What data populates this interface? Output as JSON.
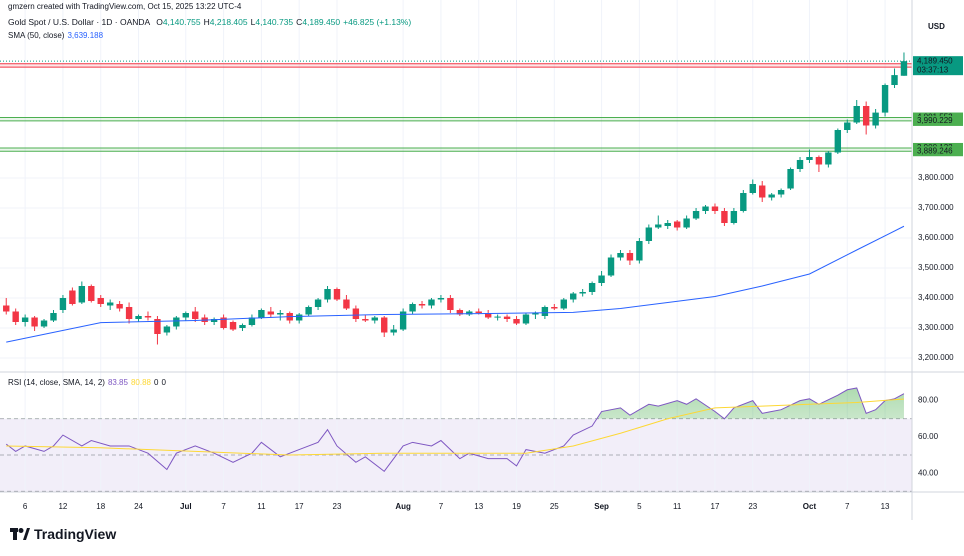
{
  "header": {
    "credit": "gmzern created with TradingView.com, Oct 15, 2025 13:22 UTC-4"
  },
  "footer": {
    "logo": "TradingView"
  },
  "chart_data": [
    {
      "type": "candlestick",
      "title": "Gold Spot / U.S. Dollar · 1D · OANDA",
      "ohlc_legend": [
        {
          "label": "O",
          "value": "4,140.755"
        },
        {
          "label": "H",
          "value": "4,218.405"
        },
        {
          "label": "L",
          "value": "4,140.735"
        },
        {
          "label": "C",
          "value": "4,189.450"
        }
      ],
      "change": "+46.825 (+1.13%)",
      "currency": "USD",
      "up_color": "#089981",
      "down_color": "#f23645",
      "open": [
        3375,
        3355,
        3320,
        3335,
        3305,
        3325,
        3360,
        3425,
        3385,
        3440,
        3400,
        3375,
        3380,
        3370,
        3330,
        3340,
        3330,
        3285,
        3305,
        3335,
        3355,
        3335,
        3320,
        3335,
        3320,
        3300,
        3310,
        3335,
        3355,
        3345,
        3350,
        3325,
        3345,
        3370,
        3395,
        3430,
        3395,
        3365,
        3330,
        3325,
        3335,
        3285,
        3295,
        3355,
        3380,
        3375,
        3395,
        3400,
        3360,
        3345,
        3355,
        3350,
        3335,
        3338,
        3330,
        3315,
        3345,
        3340,
        3370,
        3365,
        3395,
        3415,
        3420,
        3450,
        3475,
        3535,
        3550,
        3525,
        3590,
        3635,
        3640,
        3655,
        3635,
        3665,
        3690,
        3705,
        3690,
        3650,
        3690,
        3750,
        3775,
        3735,
        3745,
        3765,
        3830,
        3860,
        3870,
        3845,
        3885,
        3960,
        3985,
        4040,
        3975,
        4018,
        4110,
        4140.755
      ],
      "high": [
        3400,
        3365,
        3345,
        3340,
        3330,
        3360,
        3410,
        3435,
        3455,
        3445,
        3410,
        3395,
        3390,
        3385,
        3345,
        3355,
        3340,
        3310,
        3340,
        3355,
        3370,
        3345,
        3335,
        3345,
        3325,
        3315,
        3345,
        3365,
        3370,
        3360,
        3355,
        3350,
        3375,
        3400,
        3440,
        3435,
        3410,
        3375,
        3345,
        3340,
        3340,
        3310,
        3365,
        3385,
        3390,
        3400,
        3410,
        3410,
        3365,
        3360,
        3365,
        3360,
        3345,
        3345,
        3340,
        3350,
        3355,
        3375,
        3380,
        3400,
        3420,
        3430,
        3455,
        3490,
        3545,
        3560,
        3560,
        3600,
        3645,
        3675,
        3660,
        3660,
        3675,
        3700,
        3710,
        3715,
        3700,
        3700,
        3760,
        3795,
        3790,
        3750,
        3765,
        3835,
        3870,
        3895,
        3875,
        3890,
        3965,
        3995,
        4060,
        4055,
        4030,
        4115,
        4165,
        4218.405
      ],
      "low": [
        3345,
        3310,
        3305,
        3290,
        3300,
        3320,
        3350,
        3375,
        3380,
        3385,
        3370,
        3360,
        3355,
        3315,
        3320,
        3325,
        3245,
        3275,
        3295,
        3325,
        3320,
        3310,
        3310,
        3295,
        3290,
        3290,
        3305,
        3330,
        3335,
        3325,
        3315,
        3315,
        3340,
        3360,
        3385,
        3390,
        3360,
        3320,
        3320,
        3315,
        3270,
        3275,
        3290,
        3345,
        3365,
        3365,
        3385,
        3350,
        3340,
        3340,
        3345,
        3330,
        3325,
        3320,
        3310,
        3310,
        3330,
        3330,
        3360,
        3360,
        3385,
        3405,
        3410,
        3440,
        3470,
        3525,
        3510,
        3515,
        3580,
        3630,
        3630,
        3625,
        3630,
        3660,
        3680,
        3680,
        3640,
        3645,
        3685,
        3745,
        3720,
        3725,
        3735,
        3760,
        3820,
        3850,
        3820,
        3835,
        3880,
        3950,
        3980,
        3945,
        3965,
        4005,
        4100,
        4140.735
      ],
      "close": [
        3355,
        3320,
        3335,
        3305,
        3325,
        3350,
        3400,
        3380,
        3440,
        3390,
        3380,
        3385,
        3365,
        3330,
        3340,
        3335,
        3280,
        3305,
        3335,
        3350,
        3330,
        3320,
        3330,
        3300,
        3295,
        3310,
        3335,
        3360,
        3345,
        3350,
        3325,
        3345,
        3370,
        3395,
        3430,
        3395,
        3365,
        3330,
        3325,
        3335,
        3285,
        3295,
        3355,
        3380,
        3375,
        3395,
        3400,
        3360,
        3345,
        3355,
        3350,
        3335,
        3338,
        3330,
        3315,
        3345,
        3350,
        3370,
        3365,
        3395,
        3415,
        3420,
        3450,
        3475,
        3535,
        3550,
        3525,
        3590,
        3635,
        3645,
        3650,
        3635,
        3665,
        3690,
        3705,
        3690,
        3650,
        3690,
        3750,
        3780,
        3735,
        3745,
        3760,
        3830,
        3860,
        3870,
        3845,
        3885,
        3960,
        3985,
        4040,
        3975,
        4018,
        4110,
        4143,
        4189.45
      ],
      "xlim": [
        -0.66,
        95.85
      ],
      "xticks": [
        {
          "value": 2,
          "label": "6"
        },
        {
          "value": 6,
          "label": "12"
        },
        {
          "value": 10,
          "label": "18"
        },
        {
          "value": 14,
          "label": "24"
        },
        {
          "value": 19,
          "label": "Jul"
        },
        {
          "value": 23,
          "label": "7"
        },
        {
          "value": 27,
          "label": "11"
        },
        {
          "value": 31,
          "label": "17"
        },
        {
          "value": 35,
          "label": "23"
        },
        {
          "value": 42,
          "label": "Aug"
        },
        {
          "value": 46,
          "label": "7"
        },
        {
          "value": 50,
          "label": "13"
        },
        {
          "value": 54,
          "label": "19"
        },
        {
          "value": 58,
          "label": "25"
        },
        {
          "value": 63,
          "label": "Sep"
        },
        {
          "value": 67,
          "label": "5"
        },
        {
          "value": 71,
          "label": "11"
        },
        {
          "value": 75,
          "label": "17"
        },
        {
          "value": 79,
          "label": "23"
        },
        {
          "value": 85,
          "label": "Oct"
        },
        {
          "value": 89,
          "label": "7"
        },
        {
          "value": 93,
          "label": "13"
        }
      ],
      "ylim": [
        3153.33,
        4393.33
      ],
      "yticks": [
        {
          "value": 3200,
          "label": "3,200.000"
        },
        {
          "value": 3300,
          "label": "3,300.000"
        },
        {
          "value": 3400,
          "label": "3,400.000"
        },
        {
          "value": 3500,
          "label": "3,500.000"
        },
        {
          "value": 3600,
          "label": "3,600.000"
        },
        {
          "value": 3700,
          "label": "3,700.000"
        },
        {
          "value": 3800,
          "label": "3,800.000"
        }
      ],
      "grid": true,
      "overlays": [
        {
          "name": "SMA (50, close)",
          "value_label": "3,639.188",
          "color": "#2962ff",
          "x": [
            0,
            10,
            20,
            30,
            40,
            50,
            60,
            65,
            70,
            75,
            80,
            85,
            90,
            95
          ],
          "values": [
            3253,
            3318,
            3325,
            3338,
            3345,
            3348,
            3352,
            3365,
            3385,
            3405,
            3440,
            3480,
            3560,
            3639.188
          ]
        }
      ],
      "zones": [
        {
          "color": "#f23645",
          "lines": [
            {
              "value": 4180.688,
              "label": "4,180.688"
            },
            {
              "value": 4169.397,
              "label": "4,169.397"
            }
          ]
        },
        {
          "color": "#4caf50",
          "lines": [
            {
              "value": 4001.552,
              "label": "4,001.552"
            },
            {
              "value": 3990.229,
              "label": "3,990.229"
            }
          ]
        },
        {
          "color": "#4caf50",
          "lines": [
            {
              "value": 3900.122,
              "label": "3,900.122"
            },
            {
              "value": 3889.246,
              "label": "3,889.246"
            }
          ]
        }
      ],
      "last_price": {
        "value": 4189.45,
        "label": "4,189.450",
        "countdown": "03:37:13"
      }
    },
    {
      "type": "line",
      "title": "RSI (14, close, SMA, 14, 2)",
      "xlim": [
        -0.66,
        95.85
      ],
      "ylim": [
        29.6,
        95.8
      ],
      "yticks": [
        {
          "value": 80,
          "label": "80.00"
        },
        {
          "value": 60,
          "label": "60.00"
        },
        {
          "value": 40,
          "label": "40.00"
        }
      ],
      "bands": [
        70,
        50,
        30
      ],
      "series": [
        {
          "color": "#7e57c2",
          "value_label": "83.85",
          "x": [
            0,
            1,
            2,
            4,
            5,
            6,
            8,
            9,
            11,
            13,
            15,
            17,
            18,
            20,
            22,
            24,
            26,
            27,
            29,
            31,
            33,
            34,
            35,
            37,
            38,
            40,
            42,
            43,
            45,
            46,
            48,
            49,
            51,
            53,
            54,
            55,
            57,
            59,
            60,
            62,
            63,
            65,
            66,
            68,
            69,
            71,
            72,
            73,
            75,
            76,
            77,
            79,
            80,
            81,
            82,
            84,
            85,
            86,
            88,
            89,
            90,
            91,
            92,
            93,
            94,
            95
          ],
          "values": [
            56,
            52,
            55,
            52,
            55,
            61,
            55,
            58,
            55,
            55,
            51,
            42,
            51,
            55,
            51,
            46,
            51,
            57,
            49,
            53,
            57,
            64,
            55,
            46,
            49,
            41,
            55,
            57,
            55,
            58,
            48,
            51,
            48,
            48,
            44,
            53,
            51,
            55,
            61,
            66,
            74,
            76,
            72,
            78,
            77,
            80,
            78,
            81,
            74,
            70,
            76,
            80,
            73,
            74,
            75,
            80,
            81,
            78,
            83,
            86,
            87,
            73,
            75,
            80,
            81,
            83.85
          ]
        },
        {
          "color": "#fdd835",
          "value_label": "80.88",
          "x": [
            0,
            10,
            20,
            30,
            40,
            50,
            55,
            60,
            65,
            70,
            75,
            80,
            85,
            90,
            95
          ],
          "values": [
            55,
            54,
            52,
            50,
            51,
            51,
            51,
            55,
            62,
            70,
            76,
            77,
            78,
            79,
            80.88
          ]
        }
      ],
      "other_values": [
        0,
        0
      ]
    }
  ]
}
